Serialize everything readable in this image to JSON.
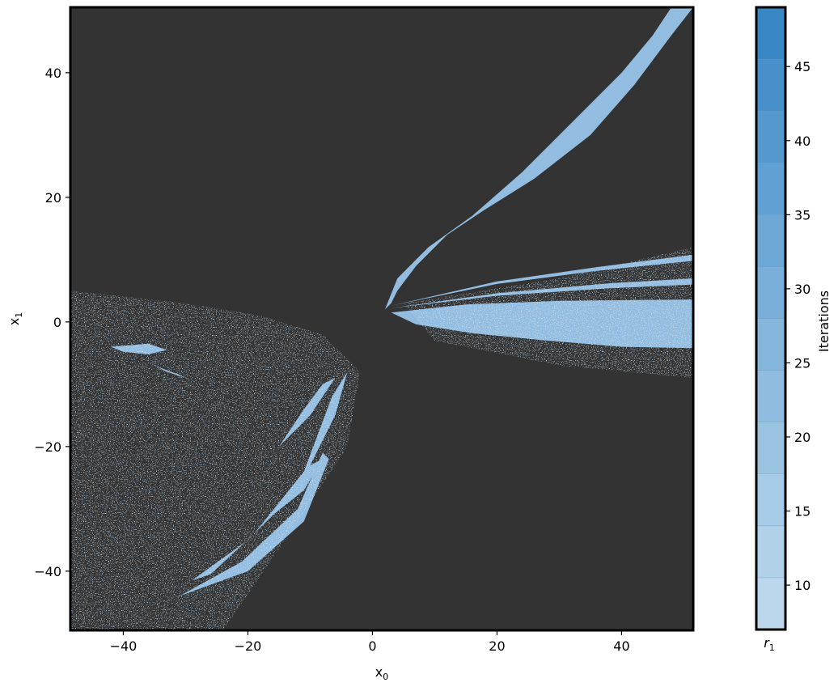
{
  "chart_data": {
    "type": "heatmap",
    "title": "",
    "xlabel": {
      "base": "x",
      "sub": "0"
    },
    "ylabel": {
      "base": "x",
      "sub": "1"
    },
    "xlim": [
      -48.5,
      51.5
    ],
    "ylim": [
      -49.5,
      50.5
    ],
    "x_ticks": [
      -40,
      -20,
      0,
      20,
      40
    ],
    "y_ticks": [
      -40,
      -20,
      0,
      20,
      40
    ],
    "x_tick_labels": [
      "−40",
      "−20",
      "0",
      "20",
      "40"
    ],
    "y_tick_labels": [
      "−40",
      "−20",
      "0",
      "20",
      "40"
    ],
    "grid": false,
    "background_color": "#333333",
    "region_color": "#93bde0",
    "colorbar": {
      "label": "Iterations",
      "min": 7,
      "max": 49,
      "ticks": [
        10,
        15,
        20,
        25,
        30,
        35,
        40,
        45
      ],
      "tick_labels": [
        "10",
        "15",
        "20",
        "25",
        "30",
        "35",
        "40",
        "45"
      ],
      "boundaries": [
        7,
        10.5,
        14,
        17.5,
        21,
        24.5,
        28,
        31.5,
        35,
        38.5,
        42,
        45.5,
        49
      ],
      "colors": [
        "#bcd7ec",
        "#b1d1e9",
        "#a6cbe6",
        "#9bc4e2",
        "#90bddf",
        "#85b6dc",
        "#79afd9",
        "#6da7d5",
        "#61a0d2",
        "#5598ce",
        "#4890ca",
        "#3a87c5"
      ],
      "bottom_label": {
        "base": "r",
        "sub": "1"
      }
    },
    "regions": [
      {
        "name": "upper-right-branch",
        "polygon": [
          [
            2,
            2
          ],
          [
            4,
            7
          ],
          [
            9,
            12
          ],
          [
            16,
            17
          ],
          [
            24,
            24
          ],
          [
            32,
            32
          ],
          [
            40,
            40
          ],
          [
            45,
            46
          ],
          [
            48,
            50.5
          ],
          [
            51.5,
            50.5
          ],
          [
            48,
            46
          ],
          [
            42,
            38
          ],
          [
            35,
            30
          ],
          [
            26,
            23
          ],
          [
            18,
            18
          ],
          [
            12,
            14
          ],
          [
            7,
            9
          ],
          [
            4,
            5
          ],
          [
            3,
            3
          ]
        ]
      },
      {
        "name": "right-fan-main",
        "polygon": [
          [
            3,
            1.5
          ],
          [
            15,
            2.8
          ],
          [
            30,
            3.4
          ],
          [
            51.5,
            3.6
          ],
          [
            51.5,
            -4.2
          ],
          [
            40,
            -4.0
          ],
          [
            28,
            -3.0
          ],
          [
            16,
            -1.8
          ],
          [
            7,
            -0.4
          ]
        ]
      },
      {
        "name": "right-fan-upper",
        "polygon": [
          [
            3,
            2.2
          ],
          [
            20,
            4.6
          ],
          [
            38,
            6.2
          ],
          [
            51.5,
            7.0
          ],
          [
            51.5,
            6.0
          ],
          [
            38,
            5.4
          ],
          [
            20,
            4.2
          ]
        ]
      },
      {
        "name": "right-fan-top",
        "polygon": [
          [
            3,
            2.6
          ],
          [
            20,
            6.5
          ],
          [
            36,
            8.8
          ],
          [
            51.5,
            10.8
          ],
          [
            51.5,
            9.8
          ],
          [
            36,
            8.2
          ],
          [
            20,
            6.1
          ]
        ]
      },
      {
        "name": "left-crescent-1",
        "polygon": [
          [
            -29,
            -41.5
          ],
          [
            -20,
            -35
          ],
          [
            -12,
            -27
          ],
          [
            -6,
            -15
          ],
          [
            -4,
            -8
          ],
          [
            -6.5,
            -12
          ],
          [
            -11,
            -24
          ],
          [
            -19,
            -34
          ],
          [
            -26,
            -40.5
          ]
        ]
      },
      {
        "name": "left-crescent-2",
        "polygon": [
          [
            -31,
            -44
          ],
          [
            -20,
            -40
          ],
          [
            -11,
            -32
          ],
          [
            -7,
            -22
          ],
          [
            -8,
            -21
          ],
          [
            -12,
            -30
          ],
          [
            -21,
            -38.5
          ]
        ]
      },
      {
        "name": "left-crescent-3",
        "polygon": [
          [
            -15,
            -20
          ],
          [
            -10,
            -15
          ],
          [
            -6,
            -9
          ],
          [
            -8,
            -10
          ],
          [
            -11,
            -14
          ]
        ]
      },
      {
        "name": "left-crescent-4",
        "polygon": [
          [
            -16,
            -31
          ],
          [
            -11,
            -27
          ],
          [
            -8,
            -22
          ],
          [
            -10,
            -23
          ],
          [
            -13,
            -27
          ]
        ]
      },
      {
        "name": "left-whorl",
        "polygon": [
          [
            -42,
            -4
          ],
          [
            -36,
            -3.5
          ],
          [
            -33,
            -4.5
          ],
          [
            -36,
            -5.2
          ],
          [
            -40,
            -4.8
          ]
        ]
      },
      {
        "name": "left-whorl-2",
        "polygon": [
          [
            -35,
            -7
          ],
          [
            -31,
            -8.5
          ],
          [
            -30,
            -9
          ],
          [
            -33,
            -8
          ]
        ]
      }
    ]
  }
}
